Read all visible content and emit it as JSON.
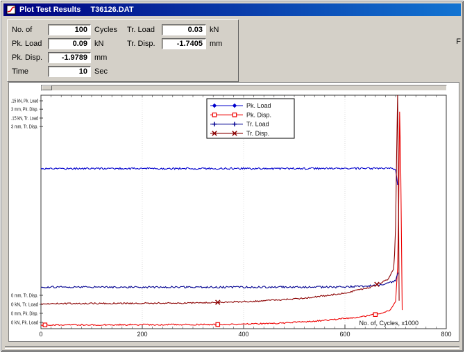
{
  "window": {
    "title_app": "Plot Test Results",
    "title_file": "T36126.DAT"
  },
  "info_panel": {
    "fields": [
      {
        "label": "No. of",
        "value": "100",
        "unit": "Cycles"
      },
      {
        "label": "Pk. Load",
        "value": "0.09",
        "unit": "kN"
      },
      {
        "label": "Pk. Disp.",
        "value": "-1.9789",
        "unit": "mm"
      },
      {
        "label": "Time",
        "value": "10",
        "unit": "Sec"
      },
      {
        "label": "Tr. Load",
        "value": "0.03",
        "unit": "kN"
      },
      {
        "label": "Tr. Disp.",
        "value": "-1.7405",
        "unit": "mm"
      }
    ],
    "clipped_label": "F"
  },
  "chart_data": {
    "type": "line",
    "title": "",
    "xlabel": "No. of, Cycles, x1000",
    "xlim": [
      0,
      800
    ],
    "xticks": [
      0,
      200,
      400,
      600,
      800
    ],
    "minor_tick": 20,
    "grid": "faint dotted vertical lines at major ticks",
    "legend_position": "inside-top-center",
    "y_encoding": "y values are fraction of each channel full-scale given in channel_labels",
    "channel_labels": [
      {
        "text": ".15 kN, Pk. Load",
        "f": 0.976
      },
      {
        "text": "3 mm, Pk. Disp.",
        "f": 0.94
      },
      {
        "text": ".15 kN, Tr. Load",
        "f": 0.902
      },
      {
        "text": "3 mm, Tr. Disp.",
        "f": 0.866
      },
      {
        "text": "0 mm, Tr. Disp.",
        "f": 0.143
      },
      {
        "text": "0 kN, Tr. Load",
        "f": 0.104
      },
      {
        "text": "0 mm, Pk. Disp.",
        "f": 0.066
      },
      {
        "text": "0 kN, Pk. Load",
        "f": 0.027
      }
    ],
    "series": [
      {
        "name": "Pk. Load",
        "color": "#0000cc",
        "marker": "diamond",
        "noise": 0.004,
        "points": [
          [
            0,
            0.686
          ],
          [
            690,
            0.686
          ],
          [
            700,
            0.684
          ],
          [
            704,
            0.62
          ]
        ],
        "markers": []
      },
      {
        "name": "Pk. Disp.",
        "color": "#ee0000",
        "marker": "square",
        "noise": 0.003,
        "points": [
          [
            0,
            0.016
          ],
          [
            380,
            0.018
          ],
          [
            480,
            0.024
          ],
          [
            560,
            0.035
          ],
          [
            620,
            0.048
          ],
          [
            665,
            0.062
          ],
          [
            690,
            0.08
          ],
          [
            700,
            0.115
          ],
          [
            705,
            0.3
          ],
          [
            708,
            0.93
          ],
          [
            709,
            0.93
          ],
          [
            711,
            0.5
          ],
          [
            713,
            0.08
          ]
        ],
        "markers": [
          8,
          349,
          660
        ]
      },
      {
        "name": "Tr. Load",
        "color": "#000090",
        "marker": "plus",
        "noise": 0.004,
        "points": [
          [
            0,
            0.178
          ],
          [
            580,
            0.178
          ],
          [
            640,
            0.182
          ],
          [
            680,
            0.19
          ],
          [
            700,
            0.205
          ],
          [
            705,
            0.24
          ]
        ],
        "markers": []
      },
      {
        "name": "Tr. Disp.",
        "color": "#8b0000",
        "marker": "x",
        "noise": 0.003,
        "points": [
          [
            0,
            0.107
          ],
          [
            300,
            0.11
          ],
          [
            420,
            0.117
          ],
          [
            520,
            0.13
          ],
          [
            600,
            0.152
          ],
          [
            650,
            0.178
          ],
          [
            685,
            0.21
          ],
          [
            697,
            0.26
          ],
          [
            701,
            0.5
          ],
          [
            703,
            1.0
          ],
          [
            704,
            1.0
          ],
          [
            706,
            0.45
          ],
          [
            707,
            0.12
          ]
        ],
        "markers": [
          349,
          663
        ]
      }
    ]
  }
}
